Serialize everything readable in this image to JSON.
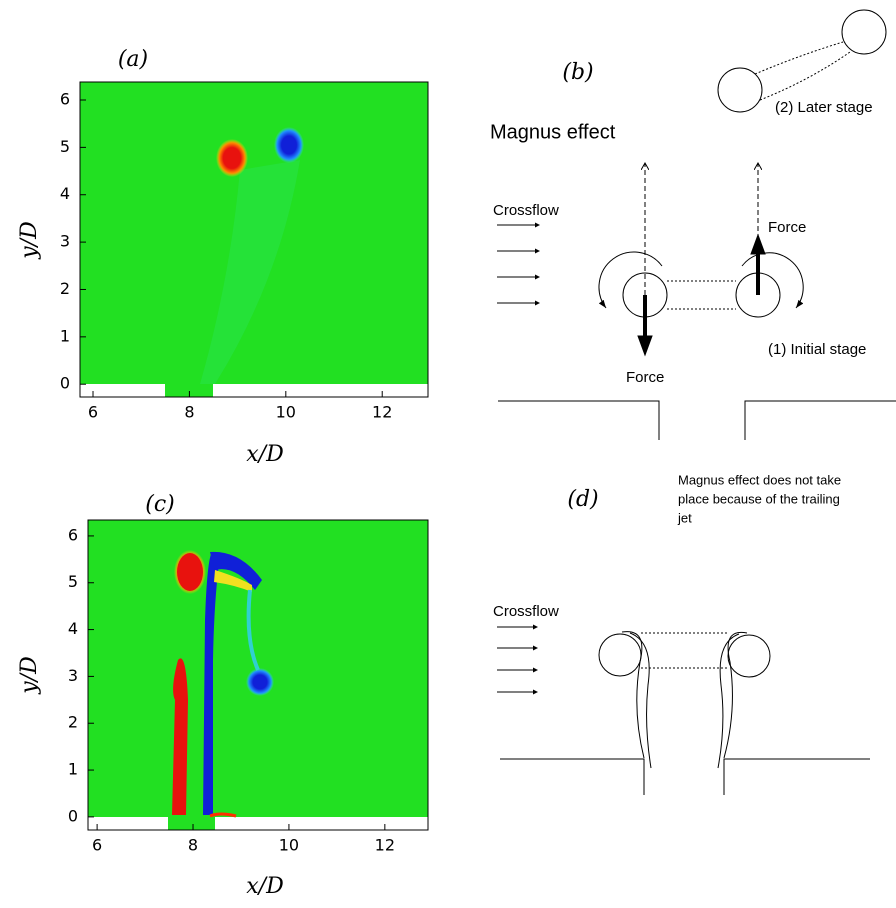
{
  "panels": {
    "a": {
      "label": "(a)",
      "xlabel": "x/D",
      "ylabel": "y/D",
      "xlim": [
        5.73,
        12.95
      ],
      "ylim": [
        -0.27,
        6.38
      ],
      "xticks": [
        6,
        8,
        10,
        12
      ],
      "yticks": [
        0,
        1,
        2,
        3,
        4,
        5,
        6
      ]
    },
    "b": {
      "label": "(b)",
      "title": "Magnus effect",
      "crossflow": "Crossflow",
      "later_stage": "(2) Later stage",
      "initial_stage": "(1) Initial stage",
      "force_up": "Force",
      "force_down": "Force"
    },
    "c": {
      "label": "(c)",
      "xlabel": "x/D",
      "ylabel": "y/D",
      "xlim": [
        5.81,
        12.9
      ],
      "ylim": [
        -0.28,
        6.34
      ],
      "xticks": [
        6,
        8,
        10,
        12
      ],
      "yticks": [
        0,
        1,
        2,
        3,
        4,
        5,
        6
      ]
    },
    "d": {
      "label": "(d)",
      "note": [
        "Magnus effect does not take",
        "place because of the trailing",
        "jet"
      ],
      "crossflow": "Crossflow"
    }
  }
}
